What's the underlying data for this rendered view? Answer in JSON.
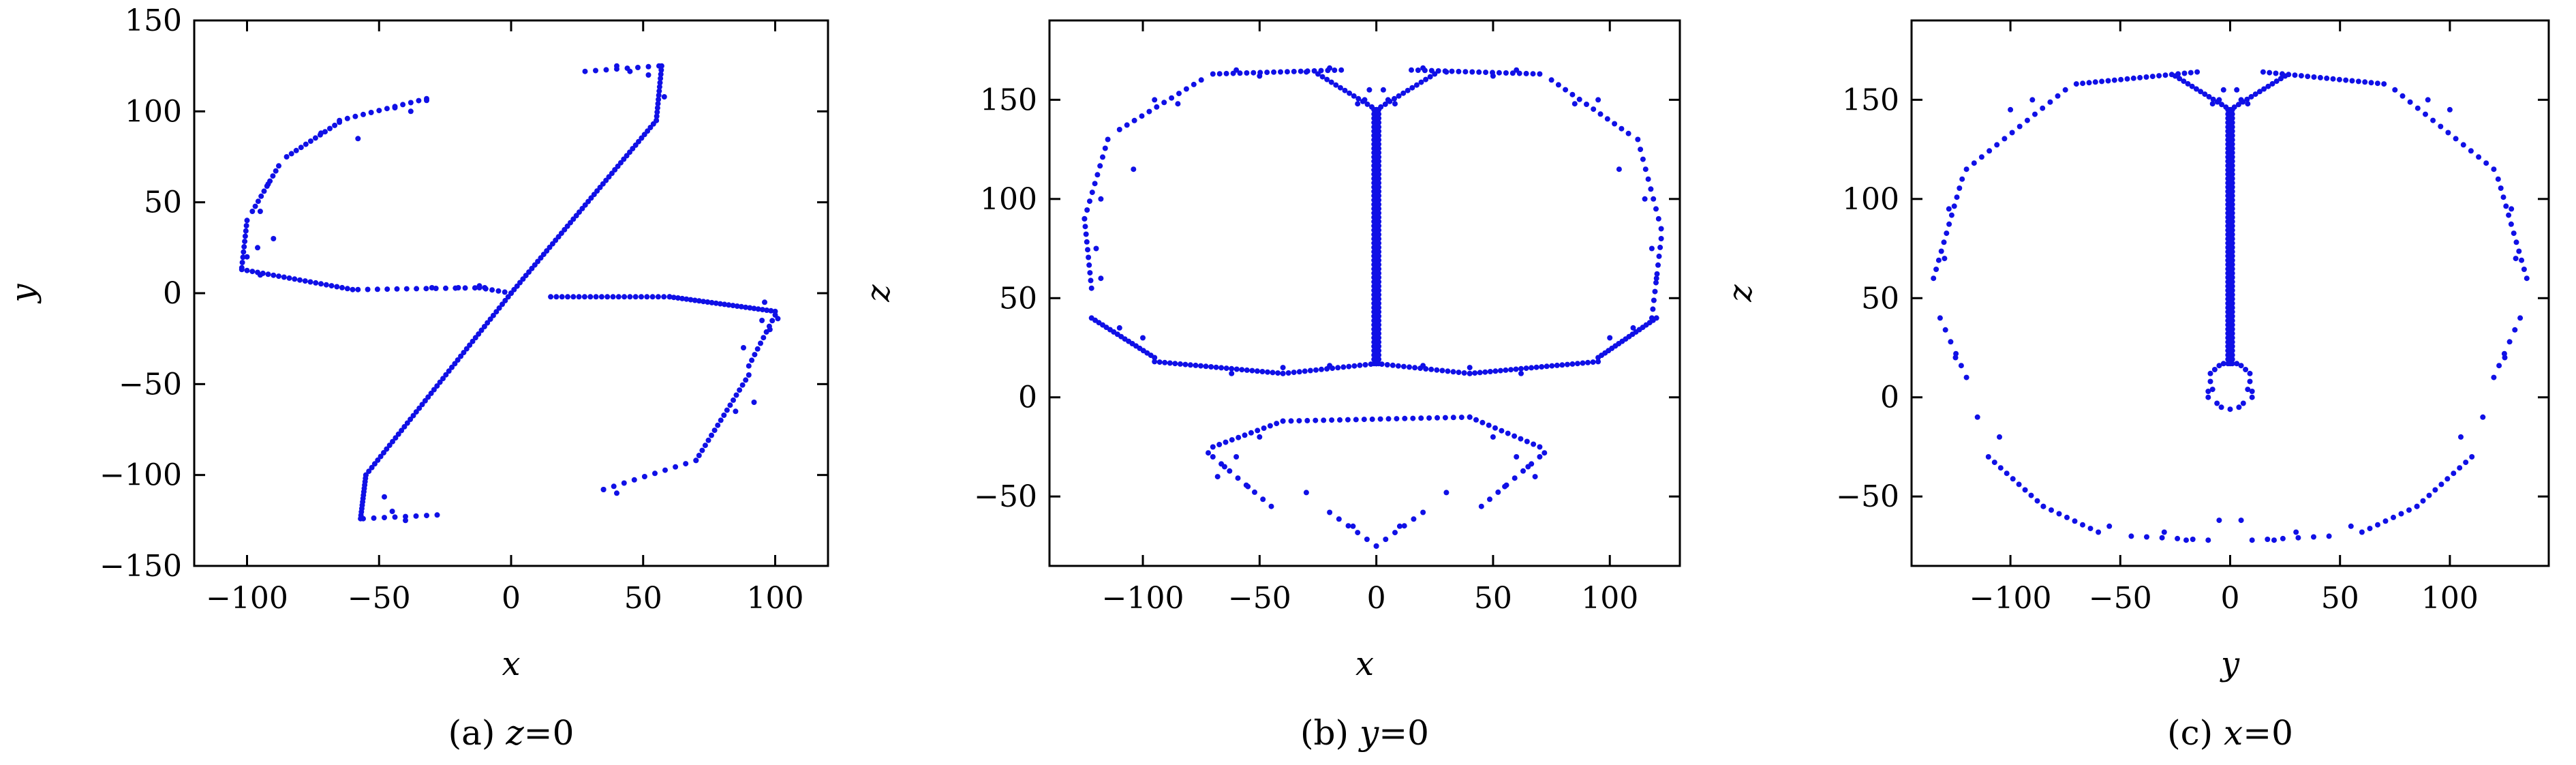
{
  "chart_data": [
    {
      "type": "scatter",
      "xlabel": "x",
      "ylabel": "y",
      "xlim": [
        -120,
        120
      ],
      "ylim": [
        -150,
        150
      ],
      "xticks": [
        -100,
        -50,
        0,
        50,
        100
      ],
      "yticks": [
        -150,
        -100,
        -50,
        0,
        50,
        100,
        150
      ],
      "xtick_labels": [
        "−100",
        "−50",
        "0",
        "50",
        "100"
      ],
      "ytick_labels": [
        "−150",
        "−100",
        "−50",
        "0",
        "50",
        "100",
        "150"
      ],
      "caption": {
        "prefix": "(a) ",
        "var": "z",
        "suffix": "=0"
      },
      "marker_color": "#1010e6",
      "segments": [
        {
          "from": [
            -32,
            107
          ],
          "to": [
            -65,
            95
          ],
          "n": 12
        },
        {
          "from": [
            -65,
            94
          ],
          "to": [
            -85,
            75
          ],
          "n": 12
        },
        {
          "from": [
            -88,
            70
          ],
          "to": [
            -98,
            45
          ],
          "n": 10
        },
        {
          "from": [
            -100,
            40
          ],
          "to": [
            -102,
            14
          ],
          "n": 10
        },
        {
          "from": [
            -102,
            13
          ],
          "to": [
            -60,
            2
          ],
          "n": 22
        },
        {
          "from": [
            -58,
            2
          ],
          "to": [
            -10,
            3
          ],
          "n": 14
        },
        {
          "from": [
            -12,
            3
          ],
          "to": [
            0,
            0
          ],
          "n": 6
        },
        {
          "from": [
            0,
            0
          ],
          "to": [
            55,
            95
          ],
          "n": 50
        },
        {
          "from": [
            55,
            95
          ],
          "to": [
            57,
            125
          ],
          "n": 14
        },
        {
          "from": [
            56,
            125
          ],
          "to": [
            28,
            122
          ],
          "n": 8
        },
        {
          "from": [
            0,
            0
          ],
          "to": [
            -55,
            -100
          ],
          "n": 50
        },
        {
          "from": [
            -55,
            -100
          ],
          "to": [
            -57,
            -124
          ],
          "n": 14
        },
        {
          "from": [
            -56,
            -124
          ],
          "to": [
            -28,
            -122
          ],
          "n": 8
        },
        {
          "from": [
            15,
            -2
          ],
          "to": [
            60,
            -2
          ],
          "n": 22
        },
        {
          "from": [
            60,
            -2
          ],
          "to": [
            100,
            -10
          ],
          "n": 26
        },
        {
          "from": [
            100,
            -12
          ],
          "to": [
            90,
            -40
          ],
          "n": 10
        },
        {
          "from": [
            90,
            -45
          ],
          "to": [
            70,
            -92
          ],
          "n": 18
        },
        {
          "from": [
            70,
            -92
          ],
          "to": [
            35,
            -108
          ],
          "n": 10
        }
      ],
      "points": [
        [
          -32,
          106
        ],
        [
          -38,
          100
        ],
        [
          -44,
          102
        ],
        [
          -58,
          85
        ],
        [
          -72,
          88
        ],
        [
          -92,
          60
        ],
        [
          -95,
          45
        ],
        [
          -90,
          30
        ],
        [
          -96,
          25
        ],
        [
          -100,
          20
        ],
        [
          -95,
          10
        ],
        [
          -30,
          3
        ],
        [
          -20,
          3
        ],
        [
          -12,
          4
        ],
        [
          40,
          125
        ],
        [
          45,
          122
        ],
        [
          52,
          120
        ],
        [
          58,
          108
        ],
        [
          -40,
          -125
        ],
        [
          -45,
          -120
        ],
        [
          -48,
          -112
        ],
        [
          35,
          -108
        ],
        [
          40,
          -110
        ],
        [
          95,
          -15
        ],
        [
          88,
          -30
        ],
        [
          92,
          -60
        ],
        [
          85,
          -65
        ],
        [
          98,
          -20
        ],
        [
          101,
          -14
        ],
        [
          96,
          -5
        ]
      ]
    },
    {
      "type": "scatter",
      "xlabel": "x",
      "ylabel": "z",
      "xlim": [
        -140,
        130
      ],
      "ylim": [
        -85,
        190
      ],
      "xticks": [
        -100,
        -50,
        0,
        50,
        100
      ],
      "yticks": [
        -50,
        0,
        50,
        100,
        150
      ],
      "xtick_labels": [
        "−100",
        "−50",
        "0",
        "50",
        "100"
      ],
      "ytick_labels": [
        "−50",
        "0",
        "50",
        "100",
        "150"
      ],
      "caption": {
        "prefix": "(b) ",
        "var": "y",
        "suffix": "=0"
      },
      "marker_color": "#1010e6",
      "segments": [
        {
          "from": [
            0,
            17
          ],
          "to": [
            0,
            145
          ],
          "n": 90
        },
        {
          "from": [
            -1,
            17
          ],
          "to": [
            -1,
            145
          ],
          "n": 60
        },
        {
          "from": [
            1,
            17
          ],
          "to": [
            1,
            145
          ],
          "n": 60
        },
        {
          "from": [
            0,
            145
          ],
          "to": [
            -25,
            163
          ],
          "n": 14
        },
        {
          "from": [
            0,
            145
          ],
          "to": [
            25,
            163
          ],
          "n": 14
        },
        {
          "from": [
            -15,
            165
          ],
          "to": [
            -70,
            163
          ],
          "n": 20
        },
        {
          "from": [
            15,
            165
          ],
          "to": [
            70,
            163
          ],
          "n": 20
        },
        {
          "from": [
            -75,
            160
          ],
          "to": [
            -110,
            135
          ],
          "n": 12
        },
        {
          "from": [
            75,
            160
          ],
          "to": [
            108,
            133
          ],
          "n": 12
        },
        {
          "from": [
            -115,
            130
          ],
          "to": [
            -125,
            90
          ],
          "n": 10
        },
        {
          "from": [
            -125,
            90
          ],
          "to": [
            -122,
            55
          ],
          "n": 10
        },
        {
          "from": [
            112,
            130
          ],
          "to": [
            122,
            85
          ],
          "n": 10
        },
        {
          "from": [
            122,
            80
          ],
          "to": [
            118,
            40
          ],
          "n": 10
        },
        {
          "from": [
            -122,
            40
          ],
          "to": [
            -95,
            20
          ],
          "n": 18
        },
        {
          "from": [
            -95,
            18
          ],
          "to": [
            -40,
            12
          ],
          "n": 26
        },
        {
          "from": [
            -40,
            12
          ],
          "to": [
            0,
            17
          ],
          "n": 18
        },
        {
          "from": [
            0,
            17
          ],
          "to": [
            40,
            12
          ],
          "n": 18
        },
        {
          "from": [
            40,
            12
          ],
          "to": [
            95,
            18
          ],
          "n": 26
        },
        {
          "from": [
            95,
            20
          ],
          "to": [
            120,
            40
          ],
          "n": 18
        },
        {
          "from": [
            -70,
            -25
          ],
          "to": [
            -40,
            -12
          ],
          "n": 12
        },
        {
          "from": [
            -40,
            -12
          ],
          "to": [
            40,
            -10
          ],
          "n": 24
        },
        {
          "from": [
            40,
            -10
          ],
          "to": [
            70,
            -25
          ],
          "n": 12
        },
        {
          "from": [
            -70,
            -30
          ],
          "to": [
            -45,
            -55
          ],
          "n": 8
        },
        {
          "from": [
            70,
            -30
          ],
          "to": [
            45,
            -55
          ],
          "n": 8
        },
        {
          "from": [
            -20,
            -58
          ],
          "to": [
            0,
            -75
          ],
          "n": 6
        },
        {
          "from": [
            20,
            -58
          ],
          "to": [
            0,
            -75
          ],
          "n": 6
        }
      ],
      "points": [
        [
          -60,
          165
        ],
        [
          -50,
          162
        ],
        [
          -30,
          164
        ],
        [
          -20,
          166
        ],
        [
          20,
          166
        ],
        [
          30,
          164
        ],
        [
          50,
          162
        ],
        [
          60,
          165
        ],
        [
          -95,
          150
        ],
        [
          -85,
          148
        ],
        [
          95,
          150
        ],
        [
          85,
          148
        ],
        [
          -118,
          100
        ],
        [
          -120,
          75
        ],
        [
          -118,
          60
        ],
        [
          115,
          100
        ],
        [
          118,
          75
        ],
        [
          120,
          60
        ],
        [
          -5,
          150
        ],
        [
          5,
          150
        ],
        [
          -3,
          155
        ],
        [
          3,
          155
        ],
        [
          -8,
          148
        ],
        [
          8,
          148
        ],
        [
          -72,
          -28
        ],
        [
          -68,
          -40
        ],
        [
          -60,
          -30
        ],
        [
          72,
          -28
        ],
        [
          68,
          -40
        ],
        [
          60,
          -30
        ],
        [
          -55,
          -45
        ],
        [
          55,
          -45
        ],
        [
          -30,
          -48
        ],
        [
          30,
          -48
        ],
        [
          -10,
          -65
        ],
        [
          10,
          -65
        ],
        [
          -65,
          -35
        ],
        [
          65,
          -35
        ],
        [
          -50,
          -20
        ],
        [
          50,
          -20
        ],
        [
          -100,
          30
        ],
        [
          100,
          30
        ],
        [
          -110,
          35
        ],
        [
          110,
          35
        ],
        [
          -104,
          115
        ],
        [
          104,
          115
        ],
        [
          -40,
          15
        ],
        [
          40,
          15
        ],
        [
          -20,
          16
        ],
        [
          20,
          16
        ],
        [
          -62,
          12
        ],
        [
          62,
          12
        ]
      ]
    },
    {
      "type": "scatter",
      "xlabel": "y",
      "ylabel": "z",
      "xlim": [
        -145,
        145
      ],
      "ylim": [
        -85,
        190
      ],
      "xticks": [
        -100,
        -50,
        0,
        50,
        100
      ],
      "yticks": [
        -50,
        0,
        50,
        100,
        150
      ],
      "xtick_labels": [
        "−100",
        "−50",
        "0",
        "50",
        "100"
      ],
      "ytick_labels": [
        "−50",
        "0",
        "50",
        "100",
        "150"
      ],
      "caption": {
        "prefix": "(c) ",
        "var": "x",
        "suffix": "=0"
      },
      "marker_color": "#1010e6",
      "segments": [
        {
          "from": [
            0,
            17
          ],
          "to": [
            0,
            145
          ],
          "n": 90
        },
        {
          "from": [
            -1,
            17
          ],
          "to": [
            -1,
            145
          ],
          "n": 60
        },
        {
          "from": [
            1,
            17
          ],
          "to": [
            1,
            145
          ],
          "n": 60
        },
        {
          "from": [
            0,
            145
          ],
          "to": [
            -25,
            162
          ],
          "n": 14
        },
        {
          "from": [
            0,
            145
          ],
          "to": [
            25,
            162
          ],
          "n": 14
        },
        {
          "from": [
            -15,
            164
          ],
          "to": [
            -70,
            158
          ],
          "n": 20
        },
        {
          "from": [
            15,
            164
          ],
          "to": [
            70,
            158
          ],
          "n": 20
        },
        {
          "from": [
            -75,
            155
          ],
          "to": [
            -120,
            115
          ],
          "n": 14
        },
        {
          "from": [
            75,
            155
          ],
          "to": [
            120,
            115
          ],
          "n": 14
        },
        {
          "from": [
            -122,
            110
          ],
          "to": [
            -135,
            60
          ],
          "n": 12
        },
        {
          "from": [
            122,
            110
          ],
          "to": [
            135,
            60
          ],
          "n": 12
        },
        {
          "from": [
            -132,
            40
          ],
          "to": [
            -120,
            10
          ],
          "n": 6
        },
        {
          "from": [
            132,
            40
          ],
          "to": [
            120,
            10
          ],
          "n": 6
        },
        {
          "from": [
            -110,
            -30
          ],
          "to": [
            -85,
            -55
          ],
          "n": 10
        },
        {
          "from": [
            110,
            -30
          ],
          "to": [
            85,
            -55
          ],
          "n": 10
        },
        {
          "from": [
            -85,
            -55
          ],
          "to": [
            -60,
            -68
          ],
          "n": 8
        },
        {
          "from": [
            85,
            -55
          ],
          "to": [
            60,
            -68
          ],
          "n": 8
        },
        {
          "from": [
            -45,
            -70
          ],
          "to": [
            -10,
            -72
          ],
          "n": 6
        },
        {
          "from": [
            45,
            -70
          ],
          "to": [
            10,
            -72
          ],
          "n": 6
        }
      ],
      "points": [
        [
          -10,
          0
        ],
        [
          10,
          0
        ],
        [
          -9,
          8
        ],
        [
          9,
          8
        ],
        [
          -7,
          14
        ],
        [
          7,
          14
        ],
        [
          -3,
          17
        ],
        [
          3,
          17
        ],
        [
          -8,
          4
        ],
        [
          8,
          4
        ],
        [
          -6,
          -3
        ],
        [
          6,
          -3
        ],
        [
          0,
          -6
        ],
        [
          -9,
          12
        ],
        [
          9,
          12
        ],
        [
          -5,
          16
        ],
        [
          5,
          16
        ],
        [
          -4,
          -5
        ],
        [
          4,
          -5
        ],
        [
          -10,
          3
        ],
        [
          10,
          3
        ],
        [
          -5,
          150
        ],
        [
          5,
          150
        ],
        [
          -3,
          155
        ],
        [
          3,
          155
        ],
        [
          -8,
          148
        ],
        [
          8,
          148
        ],
        [
          -100,
          145
        ],
        [
          100,
          145
        ],
        [
          -90,
          150
        ],
        [
          90,
          150
        ],
        [
          -128,
          95
        ],
        [
          128,
          95
        ],
        [
          -130,
          70
        ],
        [
          130,
          70
        ],
        [
          -125,
          20
        ],
        [
          125,
          20
        ],
        [
          -115,
          -10
        ],
        [
          115,
          -10
        ],
        [
          -105,
          -20
        ],
        [
          105,
          -20
        ],
        [
          -30,
          -68
        ],
        [
          30,
          -68
        ],
        [
          -5,
          -62
        ],
        [
          5,
          -62
        ],
        [
          -55,
          -65
        ],
        [
          55,
          -65
        ],
        [
          -20,
          -72
        ],
        [
          20,
          -72
        ]
      ]
    }
  ]
}
